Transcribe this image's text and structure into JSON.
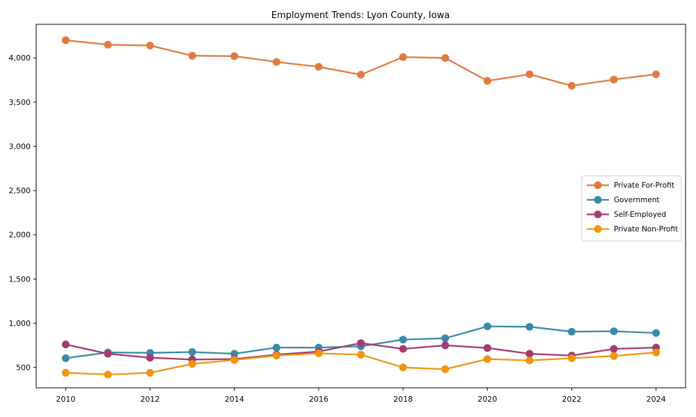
{
  "title": "Employment Trends: Lyon County, Iowa",
  "chart_data": {
    "type": "line",
    "title": "Employment Trends: Lyon County, Iowa",
    "xlabel": "",
    "ylabel": "",
    "x": [
      2010,
      2011,
      2012,
      2013,
      2014,
      2015,
      2016,
      2017,
      2018,
      2019,
      2020,
      2021,
      2022,
      2023,
      2024
    ],
    "series": [
      {
        "name": "Private For-Profit",
        "color": "#e2793e",
        "values": [
          4200,
          4150,
          4140,
          4025,
          4020,
          3955,
          3900,
          3810,
          4010,
          4000,
          3740,
          3815,
          3685,
          3755,
          3815
        ]
      },
      {
        "name": "Government",
        "color": "#388aaa",
        "values": [
          605,
          670,
          665,
          675,
          655,
          725,
          725,
          740,
          815,
          830,
          965,
          960,
          905,
          910,
          890
        ]
      },
      {
        "name": "Self-Employed",
        "color": "#a23b72",
        "values": [
          760,
          655,
          610,
          590,
          595,
          645,
          680,
          775,
          710,
          750,
          720,
          655,
          635,
          710,
          725
        ]
      },
      {
        "name": "Private Non-Profit",
        "color": "#f0940f",
        "values": [
          440,
          420,
          440,
          540,
          585,
          635,
          660,
          645,
          500,
          480,
          595,
          580,
          605,
          630,
          670
        ]
      }
    ],
    "xticks": [
      2010,
      2012,
      2014,
      2016,
      2018,
      2020,
      2022,
      2024
    ],
    "yticks": [
      500,
      1000,
      1500,
      2000,
      2500,
      3000,
      3500,
      4000
    ],
    "ytick_labels": [
      "500",
      "1,000",
      "1,500",
      "2,000",
      "2,500",
      "3,000",
      "3,500",
      "4,000"
    ],
    "xlim": [
      2009.3,
      2024.7
    ],
    "ylim": [
      270,
      4380
    ],
    "grid": false,
    "legend_position": "center-right",
    "legend_labels": [
      "Private For-Profit",
      "Government",
      "Self-Employed",
      "Private Non-Profit"
    ]
  }
}
